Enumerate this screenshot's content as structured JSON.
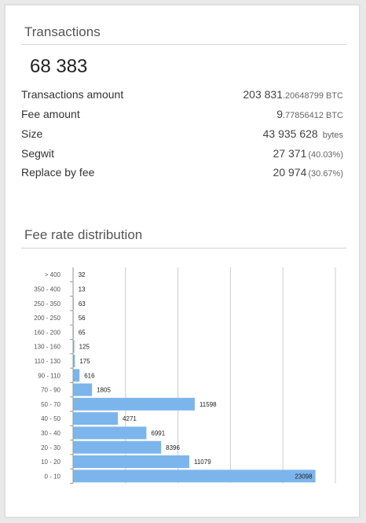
{
  "transactions": {
    "title": "Transactions",
    "count": "68 383",
    "rows": [
      {
        "label": "Transactions amount",
        "value": "203 831",
        "small": ".20648799",
        "unit": "BTC"
      },
      {
        "label": "Fee amount",
        "value": "9",
        "small": ".77856412",
        "unit": "BTC"
      },
      {
        "label": "Size",
        "value": "43 935 628",
        "small": "",
        "unit": "bytes"
      },
      {
        "label": "Segwit",
        "value": "27 371",
        "pct": "(40.03%)"
      },
      {
        "label": "Replace by fee",
        "value": "20 974",
        "pct": "(30.67%)"
      }
    ]
  },
  "fee_distribution": {
    "title": "Fee rate distribution"
  },
  "colors": {
    "bar": "#7cb5ec",
    "grid": "#cccccc"
  },
  "chart_data": {
    "type": "bar",
    "orientation": "horizontal",
    "categories": [
      "> 400",
      "350 - 400",
      "250 - 350",
      "200 - 250",
      "160 - 200",
      "130 - 160",
      "110 - 130",
      "90 - 110",
      "70 - 90",
      "50 - 70",
      "40 - 50",
      "30 - 40",
      "20 - 30",
      "10 - 20",
      "0 - 10"
    ],
    "values": [
      32,
      13,
      63,
      56,
      65,
      125,
      175,
      616,
      1805,
      11598,
      4271,
      6991,
      8396,
      11079,
      23098
    ],
    "xlim": [
      0,
      25000
    ],
    "grid": true,
    "data_labels": true
  }
}
